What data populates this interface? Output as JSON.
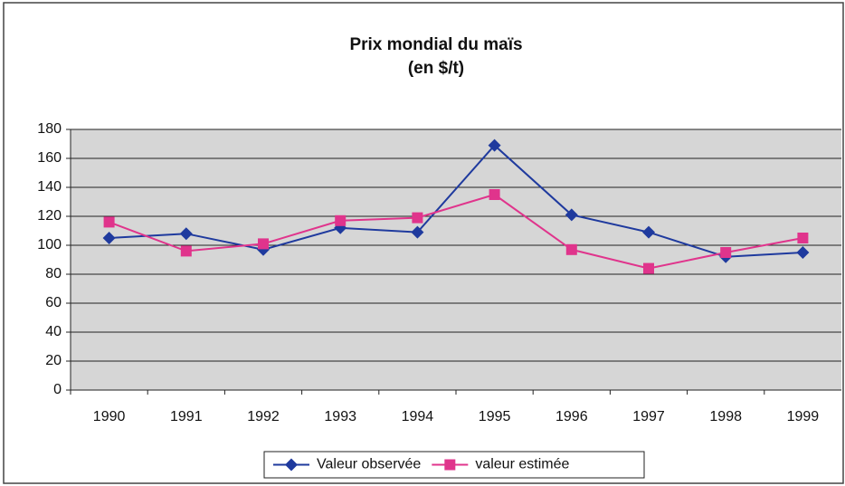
{
  "chart_data": {
    "type": "line",
    "title": "Prix mondial du maïs",
    "subtitle": "(en $/t)",
    "categories": [
      "1990",
      "1991",
      "1992",
      "1993",
      "1994",
      "1995",
      "1996",
      "1997",
      "1998",
      "1999"
    ],
    "series": [
      {
        "name": "Valeur observée",
        "color": "#1f3a9e",
        "marker": "diamond",
        "values": [
          105,
          108,
          97,
          112,
          109,
          169,
          121,
          109,
          92,
          95
        ]
      },
      {
        "name": "valeur estimée",
        "color": "#e0348c",
        "marker": "square",
        "values": [
          116,
          96,
          101,
          117,
          119,
          135,
          97,
          84,
          95,
          105
        ]
      }
    ],
    "ylim": [
      0,
      180
    ],
    "yticks": [
      0,
      20,
      40,
      60,
      80,
      100,
      120,
      140,
      160,
      180
    ],
    "grid": true,
    "legend": "bottom"
  }
}
